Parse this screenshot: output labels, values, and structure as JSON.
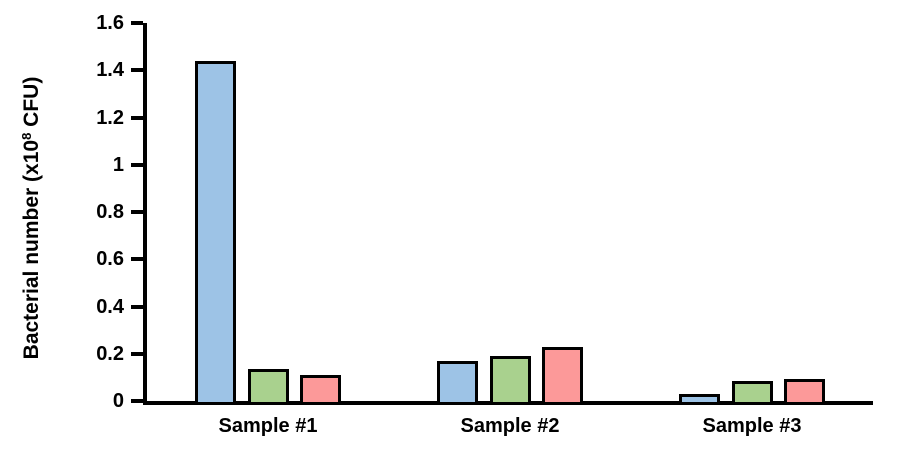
{
  "page": {
    "background": "#ffffff",
    "axis_color": "#000000",
    "text_color": "#000000"
  },
  "chart_data": {
    "type": "bar",
    "title": "",
    "categories": [
      "Sample #1",
      "Sample #2",
      "Sample #3"
    ],
    "series": [
      {
        "name": "series-blue",
        "color": "#9DC3E6",
        "values": [
          1.44,
          0.17,
          0.03
        ]
      },
      {
        "name": "series-green",
        "color": "#A9D18E",
        "values": [
          0.135,
          0.19,
          0.085
        ]
      },
      {
        "name": "series-red",
        "color": "#FC9999",
        "values": [
          0.11,
          0.23,
          0.095
        ]
      }
    ],
    "ylabel": "Bacterial number (x10⁸ CFU)",
    "ylabel_parts": {
      "prefix": "Bacterial number (x10",
      "sup": "8",
      "suffix": " CFU)"
    },
    "xlabel": "",
    "ylim": [
      0,
      1.6
    ],
    "yticks": [
      "0",
      "0.2",
      "0.4",
      "0.6",
      "0.8",
      "1",
      "1.2",
      "1.4",
      "1.6"
    ],
    "bar_border_color": "#000000",
    "grid": false,
    "legend": "none"
  }
}
